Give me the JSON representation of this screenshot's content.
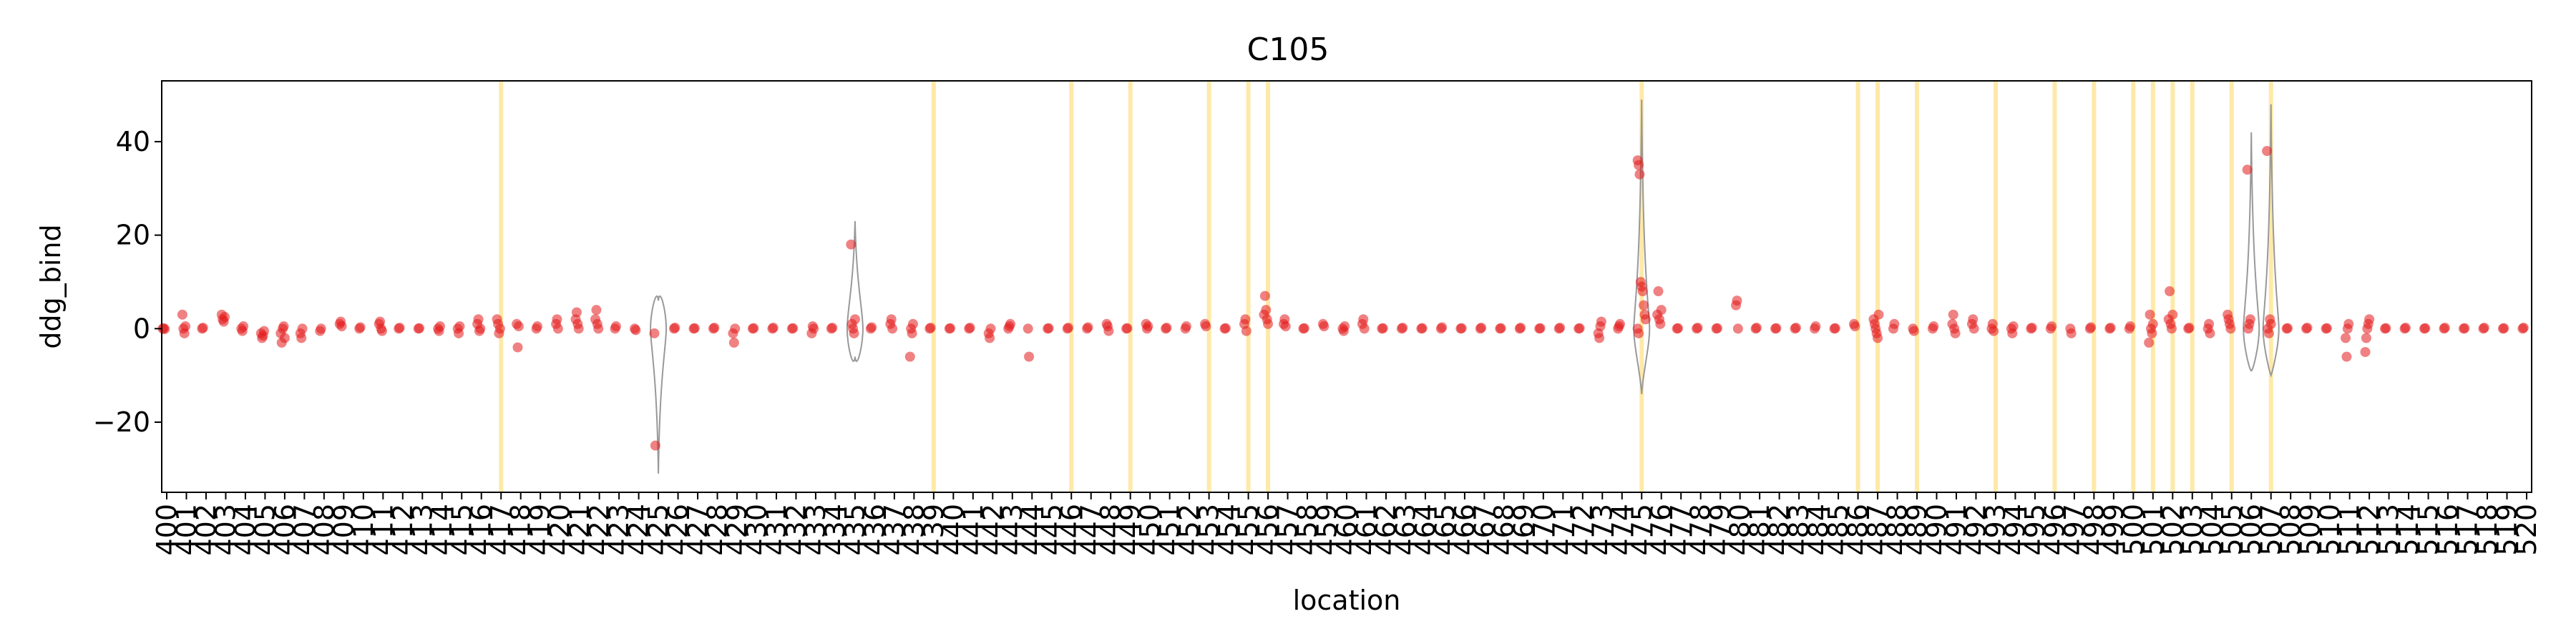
{
  "chart_data": {
    "type": "scatter",
    "title": "C105",
    "xlabel": "location",
    "ylabel": "ddg_bind",
    "ylim": [
      -35,
      53
    ],
    "yticks": [
      -20,
      0,
      20,
      40
    ],
    "grid": false,
    "colors": {
      "points": "#e31a1c",
      "highlight": "#ffe9a8",
      "violin": "#999999",
      "axis": "#000000"
    },
    "locations": [
      "400",
      "401",
      "402",
      "403",
      "404",
      "405",
      "406",
      "407",
      "408",
      "409",
      "410",
      "411",
      "412",
      "413",
      "414",
      "415",
      "416",
      "417",
      "418",
      "419",
      "420",
      "421",
      "422",
      "423",
      "424",
      "425",
      "426",
      "427",
      "428",
      "429",
      "430",
      "431",
      "432",
      "433",
      "434",
      "435",
      "436",
      "437",
      "438",
      "439",
      "440",
      "441",
      "442",
      "443",
      "444",
      "445",
      "446",
      "447",
      "448",
      "449",
      "450",
      "451",
      "452",
      "453",
      "454",
      "455",
      "456",
      "457",
      "458",
      "459",
      "460",
      "461",
      "462",
      "463",
      "464",
      "465",
      "466",
      "467",
      "468",
      "469",
      "470",
      "471",
      "472",
      "473",
      "474",
      "475",
      "476",
      "477",
      "478",
      "479",
      "480",
      "481",
      "482",
      "483",
      "484",
      "485",
      "486",
      "487",
      "488",
      "489",
      "490",
      "491",
      "492",
      "493",
      "494",
      "495",
      "496",
      "497",
      "498",
      "499",
      "500",
      "501",
      "502",
      "503",
      "504",
      "505",
      "506",
      "507",
      "508",
      "509",
      "510",
      "511",
      "512",
      "513",
      "514",
      "515",
      "516",
      "517",
      "518",
      "519",
      "520"
    ],
    "highlight_locations": [
      "417",
      "439",
      "446",
      "449",
      "453",
      "455",
      "456",
      "475",
      "486",
      "487",
      "489",
      "493",
      "496",
      "498",
      "500",
      "501",
      "502",
      "503",
      "505",
      "507"
    ],
    "series": [
      {
        "values": {
          "400": [
            0,
            0.1,
            -0.1
          ],
          "401": [
            3,
            0,
            -1,
            0.5
          ],
          "402": [
            0,
            0.2
          ],
          "403": [
            3,
            2,
            1.5,
            2.5
          ],
          "404": [
            0,
            -0.5,
            0.5
          ],
          "405": [
            -1,
            -2,
            -1.5,
            -0.5
          ],
          "406": [
            -1,
            -3,
            0,
            0.5,
            -2
          ],
          "407": [
            -1,
            -2,
            0
          ],
          "408": [
            -0.5,
            0
          ],
          "409": [
            1,
            1.5,
            0.5
          ],
          "410": [
            0,
            0.3
          ],
          "411": [
            1,
            1.5,
            0,
            -0.5
          ],
          "412": [
            0,
            0.2
          ],
          "413": [
            0,
            0.1
          ],
          "414": [
            0,
            -0.5,
            0.5
          ],
          "415": [
            0,
            -1,
            0.5
          ],
          "416": [
            1,
            2,
            -0.5,
            0
          ],
          "417": [
            2,
            1,
            -1,
            0
          ],
          "418": [
            1,
            -4,
            0.5
          ],
          "419": [
            0,
            0.5
          ],
          "420": [
            1,
            2,
            0
          ],
          "421": [
            2,
            3.5,
            1,
            0
          ],
          "422": [
            2,
            4,
            1,
            0
          ],
          "423": [
            0,
            0.5
          ],
          "424": [
            0,
            -0.3
          ],
          "425": [
            -1,
            -25
          ],
          "426": [
            0,
            0.2
          ],
          "427": [
            0,
            0.1
          ],
          "428": [
            0,
            0.2
          ],
          "429": [
            -1,
            -3,
            0
          ],
          "430": [
            0,
            0.1
          ],
          "431": [
            0,
            0.2
          ],
          "432": [
            0,
            0.1
          ],
          "433": [
            -1,
            0.5,
            0
          ],
          "434": [
            0,
            0.2
          ],
          "435": [
            18,
            1,
            0,
            -1,
            2
          ],
          "436": [
            0,
            0.3
          ],
          "437": [
            1,
            2,
            0
          ],
          "438": [
            -6,
            0,
            -1,
            1
          ],
          "439": [
            0,
            0.2
          ],
          "440": [
            0,
            0.1
          ],
          "441": [
            0,
            0.2
          ],
          "442": [
            -1,
            -2,
            0
          ],
          "443": [
            0,
            0.5,
            1
          ],
          "444": [
            0,
            -6
          ],
          "445": [
            0,
            0.1
          ],
          "446": [
            0,
            0.2
          ],
          "447": [
            0,
            0.3
          ],
          "448": [
            1,
            0.5,
            -0.5
          ],
          "449": [
            0,
            0.1
          ],
          "450": [
            1,
            0,
            0.5
          ],
          "451": [
            0,
            0.2
          ],
          "452": [
            0,
            0.5
          ],
          "453": [
            1,
            0.5
          ],
          "454": [
            0,
            0.1
          ],
          "455": [
            1,
            2,
            -0.5
          ],
          "456": [
            3,
            7,
            4,
            2,
            1
          ],
          "457": [
            1,
            2,
            0.5
          ],
          "458": [
            0,
            0.1
          ],
          "459": [
            1,
            0.5
          ],
          "460": [
            0,
            -0.5,
            0.5
          ],
          "461": [
            1,
            2,
            0
          ],
          "462": [
            0,
            0.1
          ],
          "463": [
            0,
            0.2
          ],
          "464": [
            0,
            0.1
          ],
          "465": [
            0,
            0.3
          ],
          "466": [
            0,
            0.1
          ],
          "467": [
            0,
            0.2
          ],
          "468": [
            0,
            0.1
          ],
          "469": [
            0,
            0.2
          ],
          "470": [
            0,
            0.1
          ],
          "471": [
            0,
            0.2
          ],
          "472": [
            0,
            0.1
          ],
          "473": [
            -1,
            -2,
            0.5,
            1.5
          ],
          "474": [
            0,
            0.5,
            1
          ],
          "475": [
            36,
            35,
            33,
            10,
            9,
            8,
            5,
            3,
            2,
            0,
            -1
          ],
          "476": [
            3,
            8,
            2,
            1,
            4
          ],
          "477": [
            0,
            0.1
          ],
          "478": [
            0,
            0.2
          ],
          "479": [
            0,
            0.1
          ],
          "480": [
            5,
            6,
            0
          ],
          "481": [
            0,
            0.2
          ],
          "482": [
            0,
            0.1
          ],
          "483": [
            0,
            0.2
          ],
          "484": [
            0,
            0.5
          ],
          "485": [
            0,
            0.1
          ],
          "486": [
            1,
            0.5
          ],
          "487": [
            2,
            1,
            0,
            -1,
            -2,
            3
          ],
          "488": [
            0,
            1
          ],
          "489": [
            0,
            -0.5
          ],
          "490": [
            0,
            0.5
          ],
          "491": [
            1,
            3,
            0,
            -1
          ],
          "492": [
            1,
            2,
            0
          ],
          "493": [
            0,
            1,
            -0.5
          ],
          "494": [
            0,
            -1,
            0.5
          ],
          "495": [
            0,
            0.2
          ],
          "496": [
            0,
            0.5
          ],
          "497": [
            0,
            -1
          ],
          "498": [
            0,
            0.3
          ],
          "499": [
            0,
            0.2
          ],
          "500": [
            0,
            0.5
          ],
          "501": [
            -3,
            3,
            0,
            -1,
            1
          ],
          "502": [
            2,
            8,
            1,
            0,
            3
          ],
          "503": [
            0,
            0.2
          ],
          "504": [
            0,
            1,
            -1
          ],
          "505": [
            3,
            2,
            1,
            0
          ],
          "506": [
            34,
            0,
            1,
            2
          ],
          "507": [
            38,
            0,
            -1,
            2,
            1
          ],
          "508": [
            0,
            0.1
          ],
          "509": [
            0,
            0.2
          ],
          "510": [
            0,
            0.1
          ],
          "511": [
            -2,
            -6,
            0,
            1
          ],
          "512": [
            -5,
            -2,
            0,
            1,
            2
          ],
          "513": [
            0,
            0.1
          ],
          "514": [
            0,
            0.2
          ],
          "515": [
            0,
            0.1
          ],
          "516": [
            0,
            0.2
          ],
          "517": [
            0,
            0.1
          ],
          "518": [
            0,
            0.2
          ],
          "519": [
            0,
            0.1
          ],
          "520": [
            0,
            0.2
          ]
        }
      }
    ],
    "violins": [
      {
        "location": "425",
        "min": -31,
        "max": 6
      },
      {
        "location": "435",
        "min": -6,
        "max": 23
      },
      {
        "location": "475",
        "min": -14,
        "max": 49
      },
      {
        "location": "506",
        "min": -9,
        "max": 42
      },
      {
        "location": "507",
        "min": -10,
        "max": 48
      }
    ]
  }
}
